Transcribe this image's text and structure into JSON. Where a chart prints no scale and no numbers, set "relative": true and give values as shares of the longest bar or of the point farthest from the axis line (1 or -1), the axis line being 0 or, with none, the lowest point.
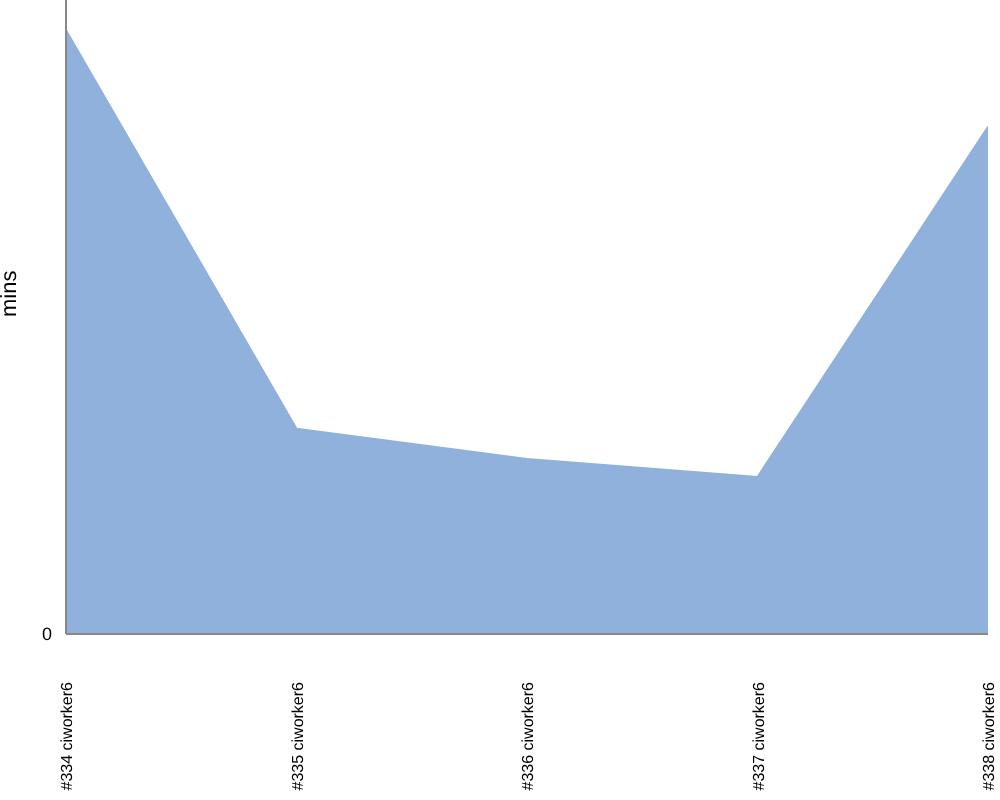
{
  "chart_data": {
    "type": "area",
    "ylabel": "mins",
    "categories": [
      "#334 ciworker6",
      "#335 ciworker6",
      "#336 ciworker6",
      "#337 ciworker6",
      "#338 ciworker6"
    ],
    "values": [
      1,
      0.34,
      0.29,
      0.26,
      0.84
    ],
    "color": "#8fb1db",
    "relative": true,
    "annotations": [
      "0"
    ]
  }
}
